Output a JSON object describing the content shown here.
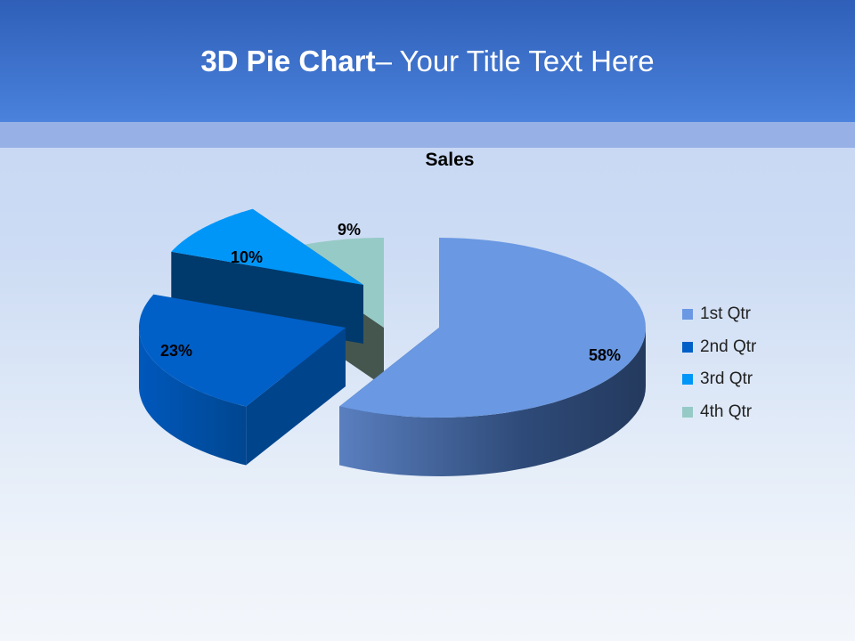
{
  "slide": {
    "title_bold": "3D Pie Chart",
    "title_rest": "– Your Title Text Here"
  },
  "chart_data": {
    "type": "pie",
    "style": "3d-exploded",
    "title": "Sales",
    "categories": [
      "1st Qtr",
      "2nd Qtr",
      "3rd Qtr",
      "4th Qtr"
    ],
    "values": [
      58,
      23,
      10,
      9
    ],
    "data_labels": [
      "58%",
      "23%",
      "10%",
      "9%"
    ],
    "colors": [
      "#6a98e2",
      "#0060c8",
      "#0096f8",
      "#96cac6"
    ],
    "legend_position": "right"
  }
}
